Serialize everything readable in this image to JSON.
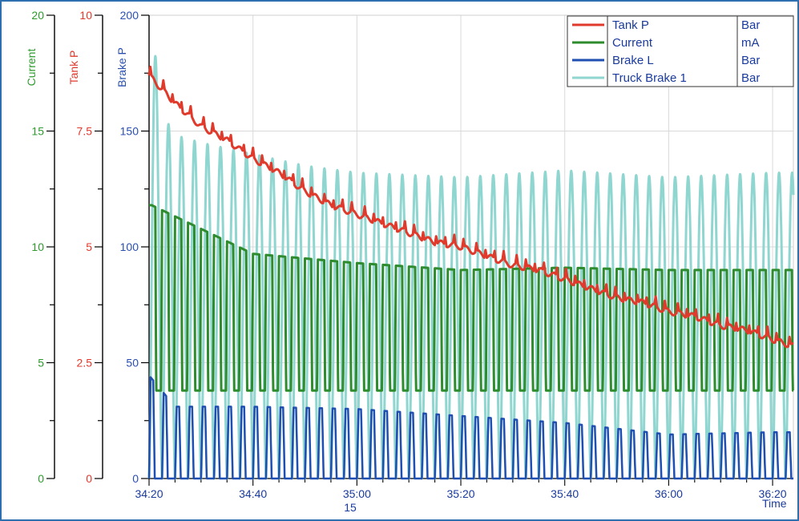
{
  "chart_data": {
    "type": "line",
    "x_axis": {
      "label": "Time",
      "tick_labels": [
        "34:20",
        "34:40",
        "35:00",
        "35:20",
        "35:40",
        "36:00",
        "36:20"
      ],
      "tick_values_s": [
        0,
        20,
        40,
        60,
        80,
        100,
        120
      ],
      "sub_label": "15",
      "range_s": [
        0,
        124
      ]
    },
    "y_axes": [
      {
        "id": "current",
        "label": "Current",
        "color": "#2e9a2e",
        "range": [
          0,
          20
        ],
        "tick_labels": [
          "0",
          "5",
          "10",
          "15",
          "20"
        ]
      },
      {
        "id": "tank",
        "label": "Tank P",
        "color": "#e03a2c",
        "range": [
          0,
          10
        ],
        "tick_labels": [
          "0",
          "2.5",
          "5",
          "7.5",
          "10"
        ]
      },
      {
        "id": "brake",
        "label": "Brake P",
        "color": "#2a4fb0",
        "range": [
          0,
          200
        ],
        "tick_labels": [
          "0",
          "50",
          "100",
          "150",
          "200"
        ]
      }
    ],
    "grid": true,
    "legend_position": "top-right",
    "legend": [
      {
        "name": "Tank P",
        "unit": "Bar",
        "color": "#e03a2c"
      },
      {
        "name": "Current",
        "unit": "mA",
        "color": "#2e8b2e"
      },
      {
        "name": "Brake L",
        "unit": "Bar",
        "color": "#1f4fb0"
      },
      {
        "name": "Truck Brake 1",
        "unit": "Bar",
        "color": "#8fd6d0"
      }
    ],
    "series": [
      {
        "name": "Tank P",
        "axis": "tank",
        "description_points_xy": [
          [
            0,
            8.7
          ],
          [
            5,
            8.1
          ],
          [
            10,
            7.6
          ],
          [
            15,
            7.3
          ],
          [
            20,
            6.9
          ],
          [
            25,
            6.6
          ],
          [
            30,
            6.2
          ],
          [
            35,
            5.9
          ],
          [
            40,
            5.7
          ],
          [
            45,
            5.5
          ],
          [
            50,
            5.3
          ],
          [
            55,
            5.1
          ],
          [
            60,
            5.0
          ],
          [
            65,
            4.8
          ],
          [
            70,
            4.6
          ],
          [
            75,
            4.5
          ],
          [
            80,
            4.3
          ],
          [
            85,
            4.1
          ],
          [
            90,
            3.9
          ],
          [
            95,
            3.8
          ],
          [
            100,
            3.6
          ],
          [
            105,
            3.5
          ],
          [
            110,
            3.3
          ],
          [
            115,
            3.2
          ],
          [
            120,
            3.0
          ],
          [
            124,
            2.85
          ]
        ]
      },
      {
        "name": "Current",
        "axis": "current",
        "period_s": 2.5,
        "peak_points_xy": [
          [
            0.5,
            11.8
          ],
          [
            20,
            9.7
          ],
          [
            40,
            9.3
          ],
          [
            60,
            9.0
          ],
          [
            80,
            9.1
          ],
          [
            100,
            9.0
          ],
          [
            120,
            9.0
          ]
        ],
        "trough": 3.8
      },
      {
        "name": "Brake L",
        "axis": "brake",
        "period_s": 2.5,
        "peak_points_xy": [
          [
            0.2,
            44
          ],
          [
            5,
            31
          ],
          [
            20,
            31
          ],
          [
            40,
            30
          ],
          [
            60,
            27
          ],
          [
            80,
            24
          ],
          [
            100,
            19
          ],
          [
            120,
            20
          ]
        ],
        "trough": 0
      },
      {
        "name": "Truck Brake 1",
        "axis": "brake",
        "period_s": 2.5,
        "peak_points_xy": [
          [
            0.3,
            198
          ],
          [
            2.8,
            156
          ],
          [
            5.3,
            148
          ],
          [
            10,
            145
          ],
          [
            20,
            140
          ],
          [
            30,
            135
          ],
          [
            40,
            132
          ],
          [
            60,
            130
          ],
          [
            80,
            133
          ],
          [
            100,
            130
          ],
          [
            120,
            132
          ]
        ],
        "trough": 0
      }
    ]
  }
}
